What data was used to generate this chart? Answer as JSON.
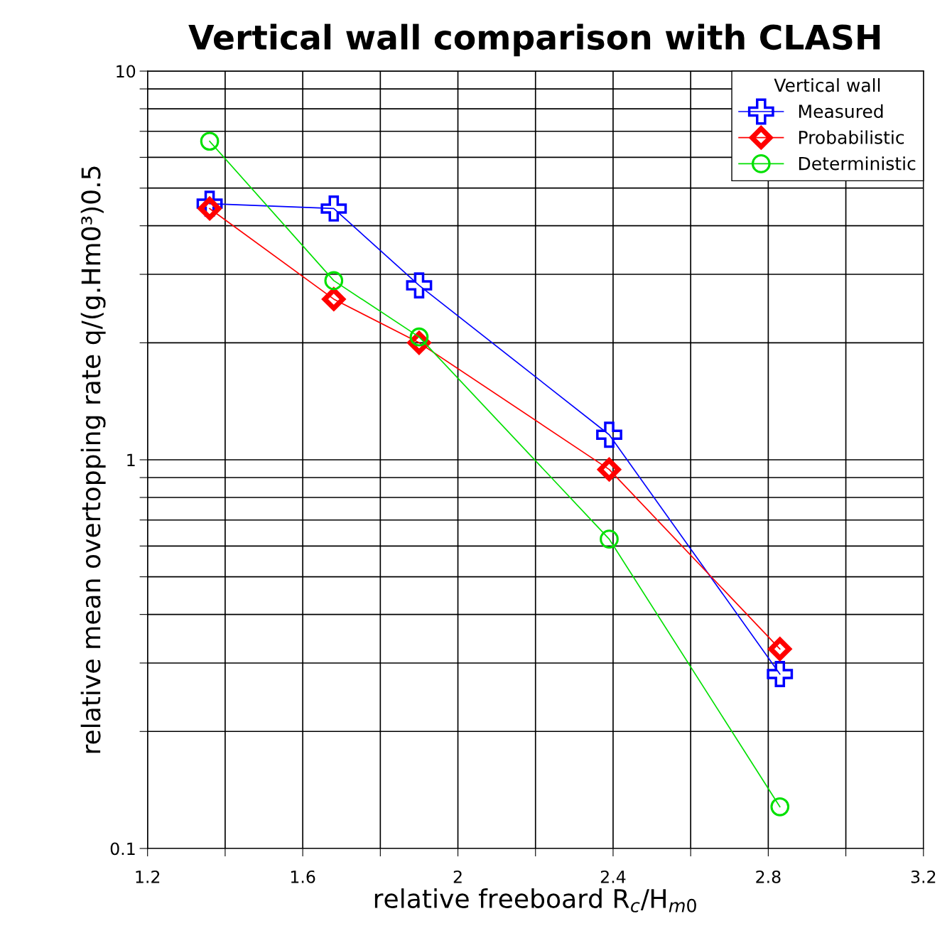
{
  "chart_data": {
    "type": "line",
    "title": "Vertical wall comparison with CLASH",
    "xlabel": "relative freeboard R$_{c}$/H$_{m0}$",
    "ylabel": "relative mean overtopping rate q/(g.Hm0³)0.5",
    "x": [
      1.36,
      1.68,
      1.9,
      2.39,
      2.83
    ],
    "series": [
      {
        "name": "Measured",
        "color": "#0000ff",
        "marker": "cross",
        "values": [
          4.56,
          4.43,
          2.81,
          1.16,
          0.281
        ]
      },
      {
        "name": "Probabilistic",
        "color": "#ff0000",
        "marker": "diamond",
        "values": [
          4.43,
          2.59,
          2.0,
          0.944,
          0.326
        ]
      },
      {
        "name": "Deterministic",
        "color": "#00e000",
        "marker": "circle",
        "values": [
          6.6,
          2.89,
          2.07,
          0.625,
          0.128
        ]
      }
    ],
    "legend_title": "Vertical wall",
    "legend": "top right",
    "log": "y",
    "grid": true,
    "line_style": "solid",
    "xlim": [
      1.2,
      3.2
    ],
    "xticks": [
      1.2,
      {
        "value": 1.4,
        "label": null
      },
      1.6,
      {
        "value": 1.8,
        "label": null
      },
      2,
      {
        "value": 2.2,
        "label": null
      },
      2.4,
      {
        "value": 2.6,
        "label": null
      },
      2.8,
      {
        "value": 3.0,
        "label": null
      },
      3.2
    ],
    "ylim": [
      0.1,
      10
    ],
    "yticks": [
      0.1,
      {
        "value": 0.2,
        "label": null
      },
      {
        "value": 0.3,
        "label": null
      },
      {
        "value": 0.4,
        "label": null
      },
      {
        "value": 0.5,
        "label": null
      },
      {
        "value": 0.6,
        "label": null
      },
      {
        "value": 0.7,
        "label": null
      },
      {
        "value": 0.8,
        "label": null
      },
      {
        "value": 0.9,
        "label": null
      },
      1,
      {
        "value": 2,
        "label": null
      },
      {
        "value": 3,
        "label": null
      },
      {
        "value": 4,
        "label": null
      },
      {
        "value": 5,
        "label": null
      },
      {
        "value": 6,
        "label": null
      },
      {
        "value": 7,
        "label": null
      },
      {
        "value": 8,
        "label": null
      },
      {
        "value": 9,
        "label": null
      },
      10
    ]
  }
}
